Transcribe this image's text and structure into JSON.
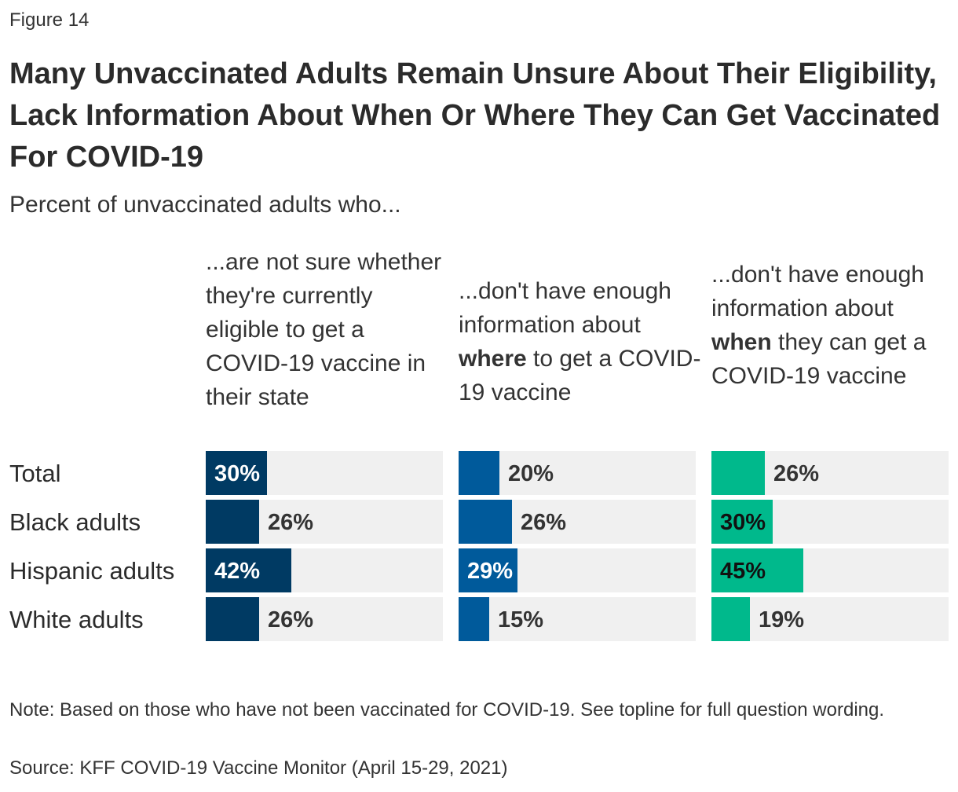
{
  "figure_label": "Figure 14",
  "title": "Many Unvaccinated Adults Remain Unsure About Their Eligibility, Lack Information About When Or Where They Can Get Vaccinated For COVID-19",
  "subtitle": "Percent of unvaccinated adults who...",
  "column_headers": [
    {
      "pre": "...are not sure whether they're currently eligible to get a COVID-19 vaccine in their state",
      "bold": "",
      "post": ""
    },
    {
      "pre": "...don't have enough information about ",
      "bold": "where",
      "post": " to get a COVID-19 vaccine"
    },
    {
      "pre": "...don't have enough information about ",
      "bold": "when",
      "post": " they can get a COVID-19 vaccine"
    }
  ],
  "colors": {
    "series_1": "#003A63",
    "series_2": "#005A9B",
    "series_3": "#00B98C",
    "track": "#F0F0F0"
  },
  "chart_data": {
    "type": "bar",
    "orientation": "horizontal",
    "categories": [
      "Total",
      "Black adults",
      "Hispanic adults",
      "White adults"
    ],
    "series": [
      {
        "values": [
          30,
          26,
          42,
          26
        ],
        "labels": [
          "30%",
          "26%",
          "42%",
          "26%"
        ]
      },
      {
        "values": [
          20,
          26,
          29,
          15
        ],
        "labels": [
          "20%",
          "26%",
          "29%",
          "15%"
        ]
      },
      {
        "values": [
          26,
          30,
          45,
          19
        ],
        "labels": [
          "26%",
          "30%",
          "45%",
          "19%"
        ]
      }
    ],
    "xlim": [
      0,
      100
    ],
    "grid": false,
    "legend": "column headers above each panel"
  },
  "note": "Note: Based on those who have not been vaccinated for COVID-19. See topline for full question wording.",
  "source": "Source: KFF COVID-19 Vaccine Monitor (April 15-29, 2021)"
}
